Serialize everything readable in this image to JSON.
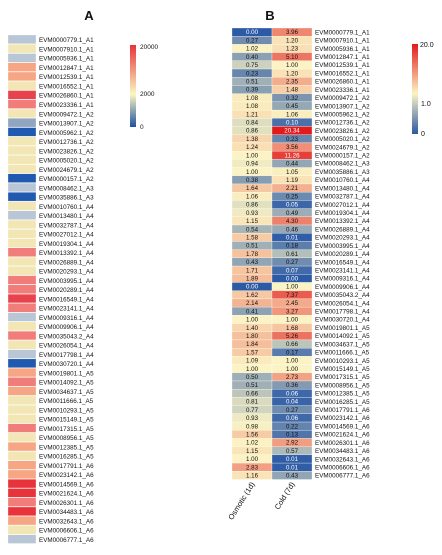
{
  "chart_data": [
    {
      "type": "heatmap",
      "panel_label": "A",
      "colorbar": {
        "tick_labels": [
          "20000",
          "2000",
          "0"
        ],
        "colors": [
          "#e8333a",
          "#fbf7c0",
          "#1e4fa3"
        ]
      },
      "rows": [
        {
          "gene": "EVM0000779.1_A1",
          "color": "#b8c6d5"
        },
        {
          "gene": "EVM0007910.1_A1",
          "color": "#f2e6b4"
        },
        {
          "gene": "EVM0005936.1_A1",
          "color": "#b8c6d5"
        },
        {
          "gene": "EVM0012847.1_A1",
          "color": "#f6a683"
        },
        {
          "gene": "EVM0012539.1_A1",
          "color": "#f6a683"
        },
        {
          "gene": "EVM0016552.1_A1",
          "color": "#f2e6b4"
        },
        {
          "gene": "EVM0026860.1_A1",
          "color": "#e8434d"
        },
        {
          "gene": "EVM0023336.1_A1",
          "color": "#f07d79"
        },
        {
          "gene": "EVM0009472.1_A2",
          "color": "#f2e6b4"
        },
        {
          "gene": "EVM0013907.1_A2",
          "color": "#8fa5c0"
        },
        {
          "gene": "EVM0005962.1_A2",
          "color": "#1f59b0"
        },
        {
          "gene": "EVM0012736.1_A2",
          "color": "#f2e6b4"
        },
        {
          "gene": "EVM0023826.1_A2",
          "color": "#f2e6b4"
        },
        {
          "gene": "EVM0005020.1_A2",
          "color": "#f2e6b4"
        },
        {
          "gene": "EVM0024679.1_A2",
          "color": "#f2e6b4"
        },
        {
          "gene": "EVM0000157.1_A2",
          "color": "#1f59b0"
        },
        {
          "gene": "EVM0008462.1_A3",
          "color": "#b8c6d5"
        },
        {
          "gene": "EVM0035886.1_A3",
          "color": "#1f59b0"
        },
        {
          "gene": "EVM0010760.1_A4",
          "color": "#f2e6b4"
        },
        {
          "gene": "EVM0013480.1_A4",
          "color": "#b8c6d5"
        },
        {
          "gene": "EVM0032787.1_A4",
          "color": "#f2e6b4"
        },
        {
          "gene": "EVM0027012.1_A4",
          "color": "#f2e6b4"
        },
        {
          "gene": "EVM0019304.1_A4",
          "color": "#f2e6b4"
        },
        {
          "gene": "EVM0013392.1_A4",
          "color": "#f07d79"
        },
        {
          "gene": "EVM0026889.1_A4",
          "color": "#f2e6b4"
        },
        {
          "gene": "EVM0020293.1_A4",
          "color": "#f2e6b4"
        },
        {
          "gene": "EVM0003995.1_A4",
          "color": "#f07d79"
        },
        {
          "gene": "EVM0020289.1_A4",
          "color": "#f07d79"
        },
        {
          "gene": "EVM0016549.1_A4",
          "color": "#e8434d"
        },
        {
          "gene": "EVM0023141.1_A4",
          "color": "#f07d79"
        },
        {
          "gene": "EVM0009316.1_A4",
          "color": "#b8c6d5"
        },
        {
          "gene": "EVM0009906.1_A4",
          "color": "#f2e6b4"
        },
        {
          "gene": "EVM0035043.2_A4",
          "color": "#f07d79"
        },
        {
          "gene": "EVM0026054.1_A4",
          "color": "#f2e6b4"
        },
        {
          "gene": "EVM0017798.1_A4",
          "color": "#b8c6d5"
        },
        {
          "gene": "EVM0030720.1_A4",
          "color": "#1f59b0"
        },
        {
          "gene": "EVM0019801.1_A5",
          "color": "#f6a683"
        },
        {
          "gene": "EVM0014092.1_A5",
          "color": "#f07d79"
        },
        {
          "gene": "EVM0034637.1_A5",
          "color": "#f6a683"
        },
        {
          "gene": "EVM0011666.1_A5",
          "color": "#f2e6b4"
        },
        {
          "gene": "EVM0010293.1_A5",
          "color": "#f2e6b4"
        },
        {
          "gene": "EVM0015149.1_A5",
          "color": "#f2e6b4"
        },
        {
          "gene": "EVM0017315.1_A5",
          "color": "#f07d79"
        },
        {
          "gene": "EVM0008956.1_A5",
          "color": "#f2e6b4"
        },
        {
          "gene": "EVM0012385.1_A5",
          "color": "#f6a683"
        },
        {
          "gene": "EVM0016285.1_A5",
          "color": "#f2e6b4"
        },
        {
          "gene": "EVM0017791.1_A6",
          "color": "#f6a683"
        },
        {
          "gene": "EVM0023142.1_A6",
          "color": "#f6a683"
        },
        {
          "gene": "EVM0014569.1_A6",
          "color": "#e8333a"
        },
        {
          "gene": "EVM0021624.1_A6",
          "color": "#e8333a"
        },
        {
          "gene": "EVM0026301.1_A6",
          "color": "#f07d79"
        },
        {
          "gene": "EVM0034483.1_A6",
          "color": "#e8333a"
        },
        {
          "gene": "EVM0032643.1_A6",
          "color": "#f6a683"
        },
        {
          "gene": "EVM0006606.1_A6",
          "color": "#f2e6b4"
        },
        {
          "gene": "EVM0006777.1_A6",
          "color": "#b8c6d5"
        }
      ]
    },
    {
      "type": "heatmap",
      "panel_label": "B",
      "columns": [
        "Osmotic (1d)",
        "Cold (7d)"
      ],
      "colorbar": {
        "tick_labels": [
          "20.0",
          "1.0",
          "0"
        ],
        "colors": [
          "#e31a1c",
          "#fbf3c3",
          "#2c5aa5"
        ]
      },
      "rows": [
        {
          "gene": "EVM0000779.1_A1",
          "values": [
            0.0,
            3.96
          ]
        },
        {
          "gene": "EVM0007910.1_A1",
          "values": [
            0.27,
            1.2
          ]
        },
        {
          "gene": "EVM0005936.1_A1",
          "values": [
            1.02,
            1.23
          ]
        },
        {
          "gene": "EVM0012847.1_A1",
          "values": [
            0.4,
            5.1
          ]
        },
        {
          "gene": "EVM0012539.1_A1",
          "values": [
            0.75,
            1.0
          ]
        },
        {
          "gene": "EVM0016552.1_A1",
          "values": [
            0.23,
            1.2
          ]
        },
        {
          "gene": "EVM0026860.1_A1",
          "values": [
            0.51,
            2.35
          ]
        },
        {
          "gene": "EVM0023336.1_A1",
          "values": [
            0.39,
            1.48
          ]
        },
        {
          "gene": "EVM0009472.1_A2",
          "values": [
            1.08,
            0.32
          ]
        },
        {
          "gene": "EVM0013907.1_A2",
          "values": [
            1.08,
            0.45
          ]
        },
        {
          "gene": "EVM0005962.1_A2",
          "values": [
            1.21,
            1.06
          ]
        },
        {
          "gene": "EVM0012736.1_A2",
          "values": [
            0.84,
            0.1
          ]
        },
        {
          "gene": "EVM0023826.1_A2",
          "values": [
            0.86,
            20.34
          ]
        },
        {
          "gene": "EVM0005020.1_A2",
          "values": [
            1.38,
            0.23
          ]
        },
        {
          "gene": "EVM0024679.1_A2",
          "values": [
            1.24,
            3.56
          ]
        },
        {
          "gene": "EVM0000157.1_A2",
          "values": [
            1.0,
            11.26
          ]
        },
        {
          "gene": "EVM0008462.1_A3",
          "values": [
            0.94,
            0.44
          ]
        },
        {
          "gene": "EVM0035886.1_A3",
          "values": [
            1.0,
            1.05
          ]
        },
        {
          "gene": "EVM0010760.1_A4",
          "values": [
            0.38,
            1.19
          ]
        },
        {
          "gene": "EVM0013480.1_A4",
          "values": [
            1.64,
            2.21
          ]
        },
        {
          "gene": "EVM0032787.1_A4",
          "values": [
            1.06,
            0.25
          ]
        },
        {
          "gene": "EVM0027012.1_A4",
          "values": [
            0.86,
            0.05
          ]
        },
        {
          "gene": "EVM0019304.1_A4",
          "values": [
            0.93,
            0.49
          ]
        },
        {
          "gene": "EVM0013392.1_A4",
          "values": [
            1.15,
            4.3
          ]
        },
        {
          "gene": "EVM0026889.1_A4",
          "values": [
            0.54,
            0.46
          ]
        },
        {
          "gene": "EVM0020293.1_A4",
          "values": [
            1.58,
            0.01
          ]
        },
        {
          "gene": "EVM0003995.1_A4",
          "values": [
            0.51,
            0.18
          ]
        },
        {
          "gene": "EVM0020289.1_A4",
          "values": [
            1.78,
            0.61
          ]
        },
        {
          "gene": "EVM0016549.1_A4",
          "values": [
            0.43,
            0.27
          ]
        },
        {
          "gene": "EVM0023141.1_A4",
          "values": [
            1.71,
            0.07
          ]
        },
        {
          "gene": "EVM0009316.1_A4",
          "values": [
            1.89,
            0.0
          ]
        },
        {
          "gene": "EVM0009906.1_A4",
          "values": [
            0.0,
            1.0
          ]
        },
        {
          "gene": "EVM0035043.2_A4",
          "values": [
            1.62,
            7.37
          ]
        },
        {
          "gene": "EVM0026054.1_A4",
          "values": [
            2.14,
            2.45
          ]
        },
        {
          "gene": "EVM0017798.1_A4",
          "values": [
            0.41,
            3.27
          ]
        },
        {
          "gene": "EVM0030720.1_A4",
          "values": [
            1.0,
            1.0
          ]
        },
        {
          "gene": "EVM0019801.1_A5",
          "values": [
            1.4,
            1.68
          ]
        },
        {
          "gene": "EVM0014092.1_A5",
          "values": [
            1.8,
            5.26
          ]
        },
        {
          "gene": "EVM0034637.1_A5",
          "values": [
            1.84,
            0.66
          ]
        },
        {
          "gene": "EVM0011666.1_A5",
          "values": [
            1.57,
            0.17
          ]
        },
        {
          "gene": "EVM0010293.1_A5",
          "values": [
            1.09,
            1.0
          ]
        },
        {
          "gene": "EVM0015149.1_A5",
          "values": [
            1.0,
            1.0
          ]
        },
        {
          "gene": "EVM0017315.1_A5",
          "values": [
            0.5,
            2.73
          ]
        },
        {
          "gene": "EVM0008956.1_A5",
          "values": [
            0.51,
            0.36
          ]
        },
        {
          "gene": "EVM0012385.1_A5",
          "values": [
            0.66,
            0.06
          ]
        },
        {
          "gene": "EVM0016285.1_A5",
          "values": [
            0.81,
            0.04
          ]
        },
        {
          "gene": "EVM0017791.1_A6",
          "values": [
            0.77,
            0.27
          ]
        },
        {
          "gene": "EVM0023142.1_A6",
          "values": [
            0.93,
            0.06
          ]
        },
        {
          "gene": "EVM0014569.1_A6",
          "values": [
            0.98,
            0.22
          ]
        },
        {
          "gene": "EVM0021624.1_A6",
          "values": [
            1.56,
            0.13
          ]
        },
        {
          "gene": "EVM0026301.1_A6",
          "values": [
            1.02,
            2.92
          ]
        },
        {
          "gene": "EVM0034483.1_A6",
          "values": [
            1.15,
            0.57
          ]
        },
        {
          "gene": "EVM0032643.1_A6",
          "values": [
            1.0,
            0.01
          ]
        },
        {
          "gene": "EVM0006606.1_A6",
          "values": [
            2.83,
            0.01
          ]
        },
        {
          "gene": "EVM0006777.1_A6",
          "values": [
            1.16,
            0.43
          ]
        }
      ]
    }
  ]
}
